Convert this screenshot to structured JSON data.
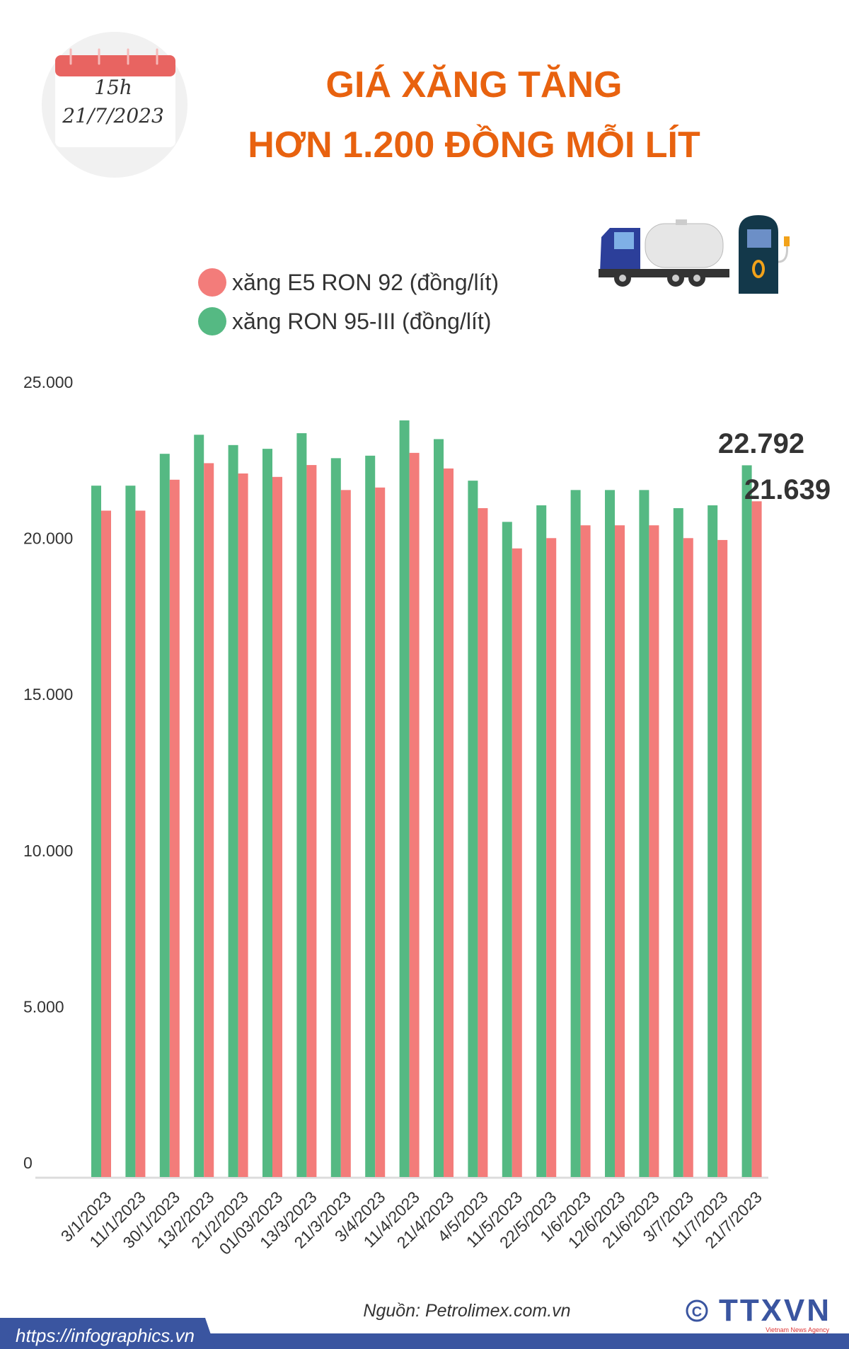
{
  "header": {
    "calendar_time": "15h",
    "calendar_date": "21/7/2023",
    "title_line1": "GIÁ XĂNG TĂNG",
    "title_line2": "HƠN 1.200 ĐỒNG MỖI LÍT",
    "icons": [
      "fuel-tanker-truck-icon",
      "fuel-pump-icon"
    ]
  },
  "chart_data": {
    "type": "bar",
    "categories": [
      "3/1/2023",
      "11/1/2023",
      "30/1/2023",
      "13/2/2023",
      "21/2/2023",
      "01/03/2023",
      "13/3/2023",
      "21/3/2023",
      "3/4/2023",
      "11/4/2023",
      "21/4/2023",
      "4/5/2023",
      "11/5/2023",
      "22/5/2023",
      "1/6/2023",
      "12/6/2023",
      "21/6/2023",
      "3/7/2023",
      "11/7/2023",
      "21/7/2023"
    ],
    "series": [
      {
        "name": "xăng RON 95-III (đồng/lít)",
        "color": "#55b983",
        "values": [
          22140,
          22140,
          23160,
          23770,
          23440,
          23320,
          23820,
          23020,
          23100,
          24230,
          23630,
          22300,
          20980,
          21510,
          22000,
          22000,
          22000,
          21420,
          21510,
          22792
        ]
      },
      {
        "name": "xăng E5 RON 92 (đồng/lít)",
        "color": "#f37c7a",
        "values": [
          21340,
          21340,
          22330,
          22860,
          22530,
          22420,
          22800,
          22000,
          22080,
          23190,
          22690,
          21420,
          20130,
          20460,
          20870,
          20870,
          20870,
          20460,
          20400,
          21639
        ]
      }
    ],
    "yticks": [
      "0",
      "5.000",
      "10.000",
      "15.000",
      "20.000",
      "25.000"
    ],
    "ylim": [
      0,
      25000
    ],
    "grid": false,
    "legend": "top-left",
    "data_labels": [
      "22.792",
      "21.639"
    ]
  },
  "footer": {
    "source": "Nguồn: Petrolimex.com.vn",
    "url": "https://infographics.vn",
    "logo_text": "TTXVN",
    "logo_subtext": "Vietnam News Agency",
    "brand_color": "#3a55a0"
  }
}
